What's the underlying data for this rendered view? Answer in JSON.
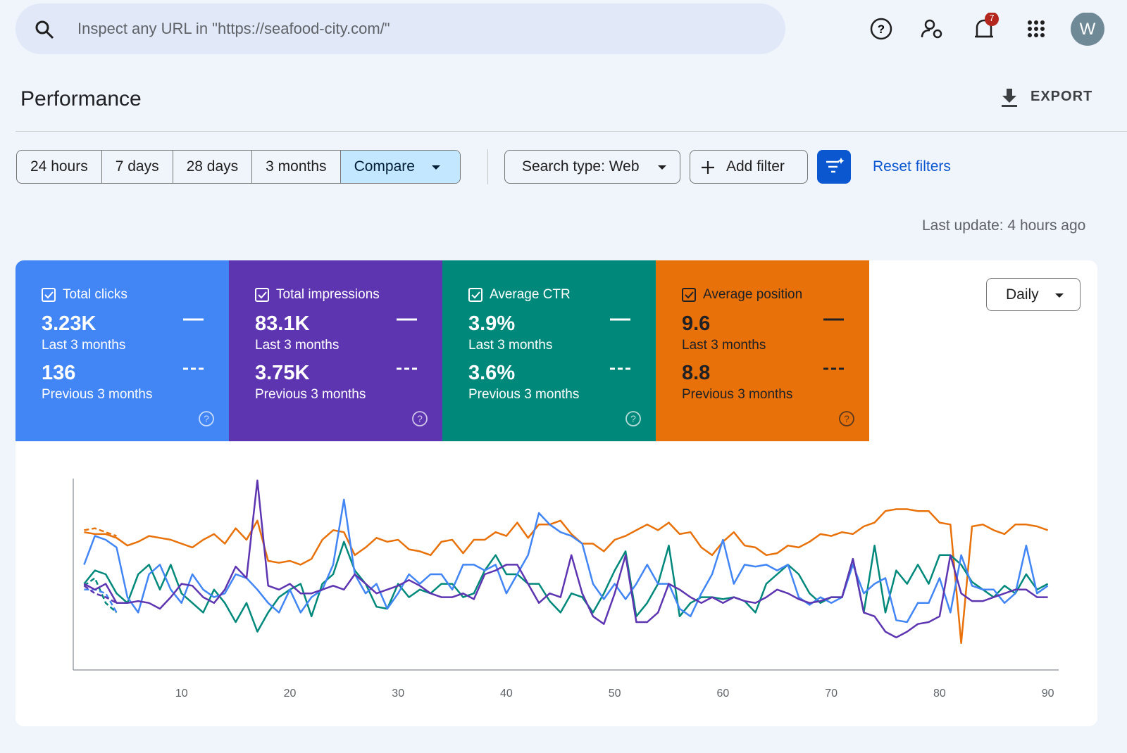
{
  "search": {
    "placeholder": "Inspect any URL in \"https://seafood-city.com/\""
  },
  "header": {
    "notifications": 7,
    "avatar": "W",
    "title": "Performance",
    "export": "EXPORT"
  },
  "filters": {
    "ranges": [
      "24 hours",
      "7 days",
      "28 days",
      "3 months"
    ],
    "compare": "Compare",
    "search_type": "Search type: Web",
    "add_filter": "Add filter",
    "reset": "Reset filters"
  },
  "last_update": "Last update: 4 hours ago",
  "metrics": [
    {
      "label": "Total clicks",
      "value": "3.23K",
      "period": "Last 3 months",
      "previous_value": "136",
      "previous_period": "Previous 3 months",
      "color": "#4285f4"
    },
    {
      "label": "Total impressions",
      "value": "83.1K",
      "period": "Last 3 months",
      "previous_value": "3.75K",
      "previous_period": "Previous 3 months",
      "color": "#5e35b1"
    },
    {
      "label": "Average CTR",
      "value": "3.9%",
      "period": "Last 3 months",
      "previous_value": "3.6%",
      "previous_period": "Previous 3 months",
      "color": "#00897b"
    },
    {
      "label": "Average position",
      "value": "9.6",
      "period": "Last 3 months",
      "previous_value": "8.8",
      "previous_period": "Previous 3 months",
      "color": "#e8710a"
    }
  ],
  "granularity": "Daily",
  "chart_data": {
    "type": "line",
    "x": [
      1,
      2,
      3,
      4,
      5,
      6,
      7,
      8,
      9,
      10,
      11,
      12,
      13,
      14,
      15,
      16,
      17,
      18,
      19,
      20,
      21,
      22,
      23,
      24,
      25,
      26,
      27,
      28,
      29,
      30,
      31,
      32,
      33,
      34,
      35,
      36,
      37,
      38,
      39,
      40,
      41,
      42,
      43,
      44,
      45,
      46,
      47,
      48,
      49,
      50,
      51,
      52,
      53,
      54,
      55,
      56,
      57,
      58,
      59,
      60,
      61,
      62,
      63,
      64,
      65,
      66,
      67,
      68,
      69,
      70,
      71,
      72,
      73,
      74,
      75,
      76,
      77,
      78,
      79,
      80,
      81,
      82,
      83,
      84,
      85,
      86,
      87,
      88,
      89,
      90
    ],
    "xlim": [
      0,
      91
    ],
    "xticks": [
      10,
      20,
      30,
      40,
      50,
      60,
      70,
      80,
      90
    ],
    "ylim": [
      0,
      100
    ],
    "series": [
      {
        "color": "#4285f4",
        "values": [
          55,
          70,
          68,
          64,
          38,
          30,
          50,
          55,
          42,
          35,
          50,
          42,
          38,
          40,
          50,
          48,
          42,
          35,
          30,
          42,
          30,
          38,
          42,
          55,
          89,
          50,
          40,
          45,
          32,
          40,
          50,
          45,
          50,
          50,
          42,
          55,
          55,
          52,
          55,
          40,
          50,
          60,
          82,
          76,
          72,
          70,
          66,
          45,
          37,
          45,
          37,
          45,
          55,
          45,
          45,
          32,
          28,
          40,
          50,
          68,
          45,
          55,
          54,
          55,
          52,
          55,
          38,
          34,
          38,
          35,
          38,
          55,
          40,
          45,
          48,
          26,
          25,
          35,
          35,
          48,
          30,
          60,
          44,
          42,
          42,
          35,
          40,
          65,
          40,
          44
        ],
        "previous_values": [
          42,
          42,
          40,
          30,
          null,
          null,
          null,
          null,
          null,
          null,
          null,
          null,
          null,
          null,
          null,
          null,
          null,
          null,
          null,
          null,
          null,
          null,
          null,
          null,
          null,
          null,
          null,
          null,
          null,
          null,
          null,
          null,
          null,
          null,
          null,
          null,
          null,
          null,
          null,
          null,
          null,
          null,
          null,
          null,
          null,
          null,
          null,
          null,
          null,
          null,
          null,
          null,
          null,
          null,
          null,
          null,
          null,
          null,
          null,
          null,
          null,
          null,
          null,
          null,
          null,
          null,
          null,
          null,
          null,
          null,
          null,
          null,
          null,
          null,
          null,
          null,
          null,
          null,
          null,
          null,
          null,
          null,
          null,
          null,
          null,
          null,
          null,
          null,
          null,
          null
        ]
      },
      {
        "color": "#5e35b1",
        "values": [
          45,
          42,
          45,
          35,
          35,
          36,
          35,
          32,
          38,
          45,
          44,
          38,
          35,
          42,
          54,
          48,
          99,
          44,
          42,
          45,
          40,
          40,
          42,
          44,
          42,
          50,
          45,
          40,
          42,
          44,
          47,
          44,
          40,
          38,
          38,
          40,
          37,
          50,
          52,
          55,
          55,
          45,
          35,
          40,
          38,
          60,
          40,
          28,
          24,
          40,
          60,
          25,
          25,
          30,
          45,
          42,
          38,
          35,
          38,
          35,
          38,
          36,
          35,
          38,
          42,
          40,
          37,
          35,
          36,
          38,
          38,
          58,
          30,
          28,
          20,
          17,
          20,
          24,
          25,
          28,
          60,
          40,
          36,
          36,
          38,
          40,
          42,
          42,
          38,
          38
        ],
        "previous_values": [
          44,
          40,
          38,
          35,
          null,
          null,
          null,
          null,
          null,
          null,
          null,
          null,
          null,
          null,
          null,
          null,
          null,
          null,
          null,
          null,
          null,
          null,
          null,
          null,
          null,
          null,
          null,
          null,
          null,
          null,
          null,
          null,
          null,
          null,
          null,
          null,
          null,
          null,
          null,
          null,
          null,
          null,
          null,
          null,
          null,
          null,
          null,
          null,
          null,
          null,
          null,
          null,
          null,
          null,
          null,
          null,
          null,
          null,
          null,
          null,
          null,
          null,
          null,
          null,
          null,
          null,
          null,
          null,
          null,
          null,
          null,
          null,
          null,
          null,
          null,
          null,
          null,
          null,
          null,
          null,
          null,
          null,
          null,
          null,
          null,
          null,
          null,
          null,
          null,
          null
        ]
      },
      {
        "color": "#00897b",
        "values": [
          45,
          52,
          50,
          40,
          35,
          50,
          55,
          42,
          55,
          40,
          35,
          30,
          42,
          35,
          25,
          35,
          20,
          30,
          38,
          42,
          45,
          28,
          45,
          50,
          67,
          52,
          45,
          33,
          32,
          45,
          38,
          42,
          40,
          45,
          45,
          38,
          40,
          52,
          60,
          50,
          50,
          45,
          45,
          36,
          30,
          40,
          38,
          30,
          40,
          52,
          62,
          28,
          35,
          45,
          65,
          28,
          35,
          38,
          38,
          37,
          38,
          36,
          30,
          45,
          50,
          55,
          50,
          40,
          35,
          38,
          38,
          58,
          30,
          65,
          30,
          52,
          45,
          55,
          45,
          60,
          60,
          55,
          46,
          42,
          38,
          44,
          40,
          50,
          42,
          45
        ],
        "previous_values": [
          44,
          48,
          35,
          30,
          null,
          null,
          null,
          null,
          null,
          null,
          null,
          null,
          null,
          null,
          null,
          null,
          null,
          null,
          null,
          null,
          null,
          null,
          null,
          null,
          null,
          null,
          null,
          null,
          null,
          null,
          null,
          null,
          null,
          null,
          null,
          null,
          null,
          null,
          null,
          null,
          null,
          null,
          null,
          null,
          null,
          null,
          null,
          null,
          null,
          null,
          null,
          null,
          null,
          null,
          null,
          null,
          null,
          null,
          null,
          null,
          null,
          null,
          null,
          null,
          null,
          null,
          null,
          null,
          null,
          null,
          null,
          null,
          null,
          null,
          null,
          null,
          null,
          null,
          null,
          null,
          null,
          null,
          null,
          null,
          null,
          null,
          null,
          null,
          null,
          null
        ]
      },
      {
        "color": "#e8710a",
        "values": [
          72,
          71,
          71,
          69,
          65,
          67,
          70,
          69,
          68,
          66,
          64,
          68,
          71,
          66,
          74,
          68,
          78,
          57,
          56,
          57,
          55,
          58,
          68,
          73,
          72,
          60,
          64,
          69,
          67,
          68,
          63,
          62,
          60,
          67,
          68,
          61,
          68,
          68,
          72,
          70,
          77,
          69,
          76,
          76,
          78,
          71,
          66,
          66,
          62,
          68,
          70,
          73,
          76,
          73,
          77,
          71,
          72,
          64,
          60,
          67,
          72,
          65,
          64,
          60,
          61,
          65,
          64,
          67,
          71,
          70,
          72,
          71,
          75,
          77,
          83,
          84,
          84,
          83,
          83,
          77,
          76,
          14,
          75,
          76,
          73,
          71,
          76,
          76,
          75,
          73
        ],
        "previous_values": [
          73,
          74,
          72,
          70,
          null,
          null,
          null,
          null,
          null,
          null,
          null,
          null,
          null,
          null,
          null,
          null,
          null,
          null,
          null,
          null,
          null,
          null,
          null,
          null,
          null,
          null,
          null,
          null,
          null,
          null,
          null,
          null,
          null,
          null,
          null,
          null,
          null,
          null,
          null,
          null,
          null,
          null,
          null,
          null,
          null,
          null,
          null,
          null,
          null,
          null,
          null,
          null,
          null,
          null,
          null,
          null,
          null,
          null,
          null,
          null,
          null,
          null,
          null,
          null,
          null,
          null,
          null,
          null,
          null,
          null,
          null,
          null,
          null,
          null,
          null,
          null,
          null,
          null,
          null,
          null,
          null,
          null,
          null,
          null,
          null,
          null,
          null,
          null,
          null,
          null
        ]
      }
    ]
  }
}
